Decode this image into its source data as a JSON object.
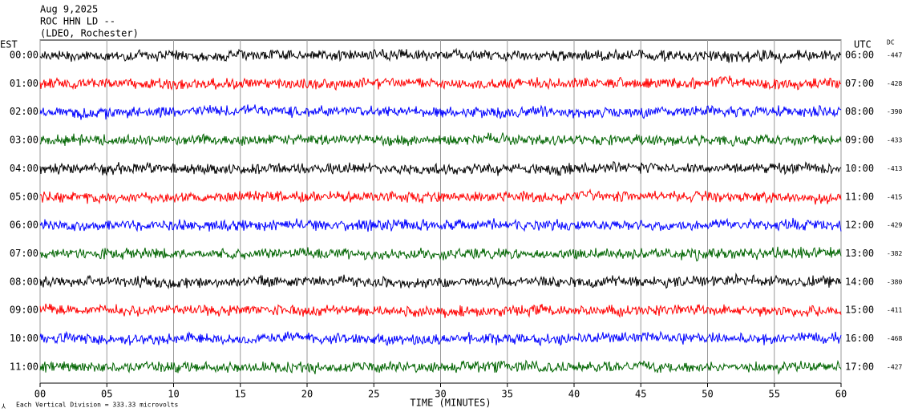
{
  "chart_data": {
    "type": "helicorder",
    "header": [
      "Aug 9,2025",
      "ROC HHN LD --",
      "(LDEO, Rochester)"
    ],
    "left_axis_title": "EST",
    "right_axis_title": "UTC",
    "dc_title": "DC",
    "rows": [
      {
        "est": "00:00",
        "utc": "06:00",
        "dc": -447,
        "color": "#000000"
      },
      {
        "est": "01:00",
        "utc": "07:00",
        "dc": -428,
        "color": "#ff0000"
      },
      {
        "est": "02:00",
        "utc": "08:00",
        "dc": -390,
        "color": "#0000ff"
      },
      {
        "est": "03:00",
        "utc": "09:00",
        "dc": -433,
        "color": "#006400"
      },
      {
        "est": "04:00",
        "utc": "10:00",
        "dc": -413,
        "color": "#000000"
      },
      {
        "est": "05:00",
        "utc": "11:00",
        "dc": -415,
        "color": "#ff0000"
      },
      {
        "est": "06:00",
        "utc": "12:00",
        "dc": -429,
        "color": "#0000ff"
      },
      {
        "est": "07:00",
        "utc": "13:00",
        "dc": -382,
        "color": "#006400"
      },
      {
        "est": "08:00",
        "utc": "14:00",
        "dc": -380,
        "color": "#000000"
      },
      {
        "est": "09:00",
        "utc": "15:00",
        "dc": -411,
        "color": "#ff0000"
      },
      {
        "est": "10:00",
        "utc": "16:00",
        "dc": -468,
        "color": "#0000ff"
      },
      {
        "est": "11:00",
        "utc": "17:00",
        "dc": -427,
        "color": "#006400"
      }
    ],
    "xlim": [
      0,
      60
    ],
    "xticks": [
      {
        "value": 0,
        "label": "00"
      },
      {
        "value": 5,
        "label": "05"
      },
      10,
      15,
      20,
      25,
      30,
      35,
      40,
      45,
      50,
      55,
      60
    ],
    "xlabel": "TIME (MINUTES)",
    "note": "Each Vertical Division =  333.33 microvolts",
    "grid": true
  }
}
